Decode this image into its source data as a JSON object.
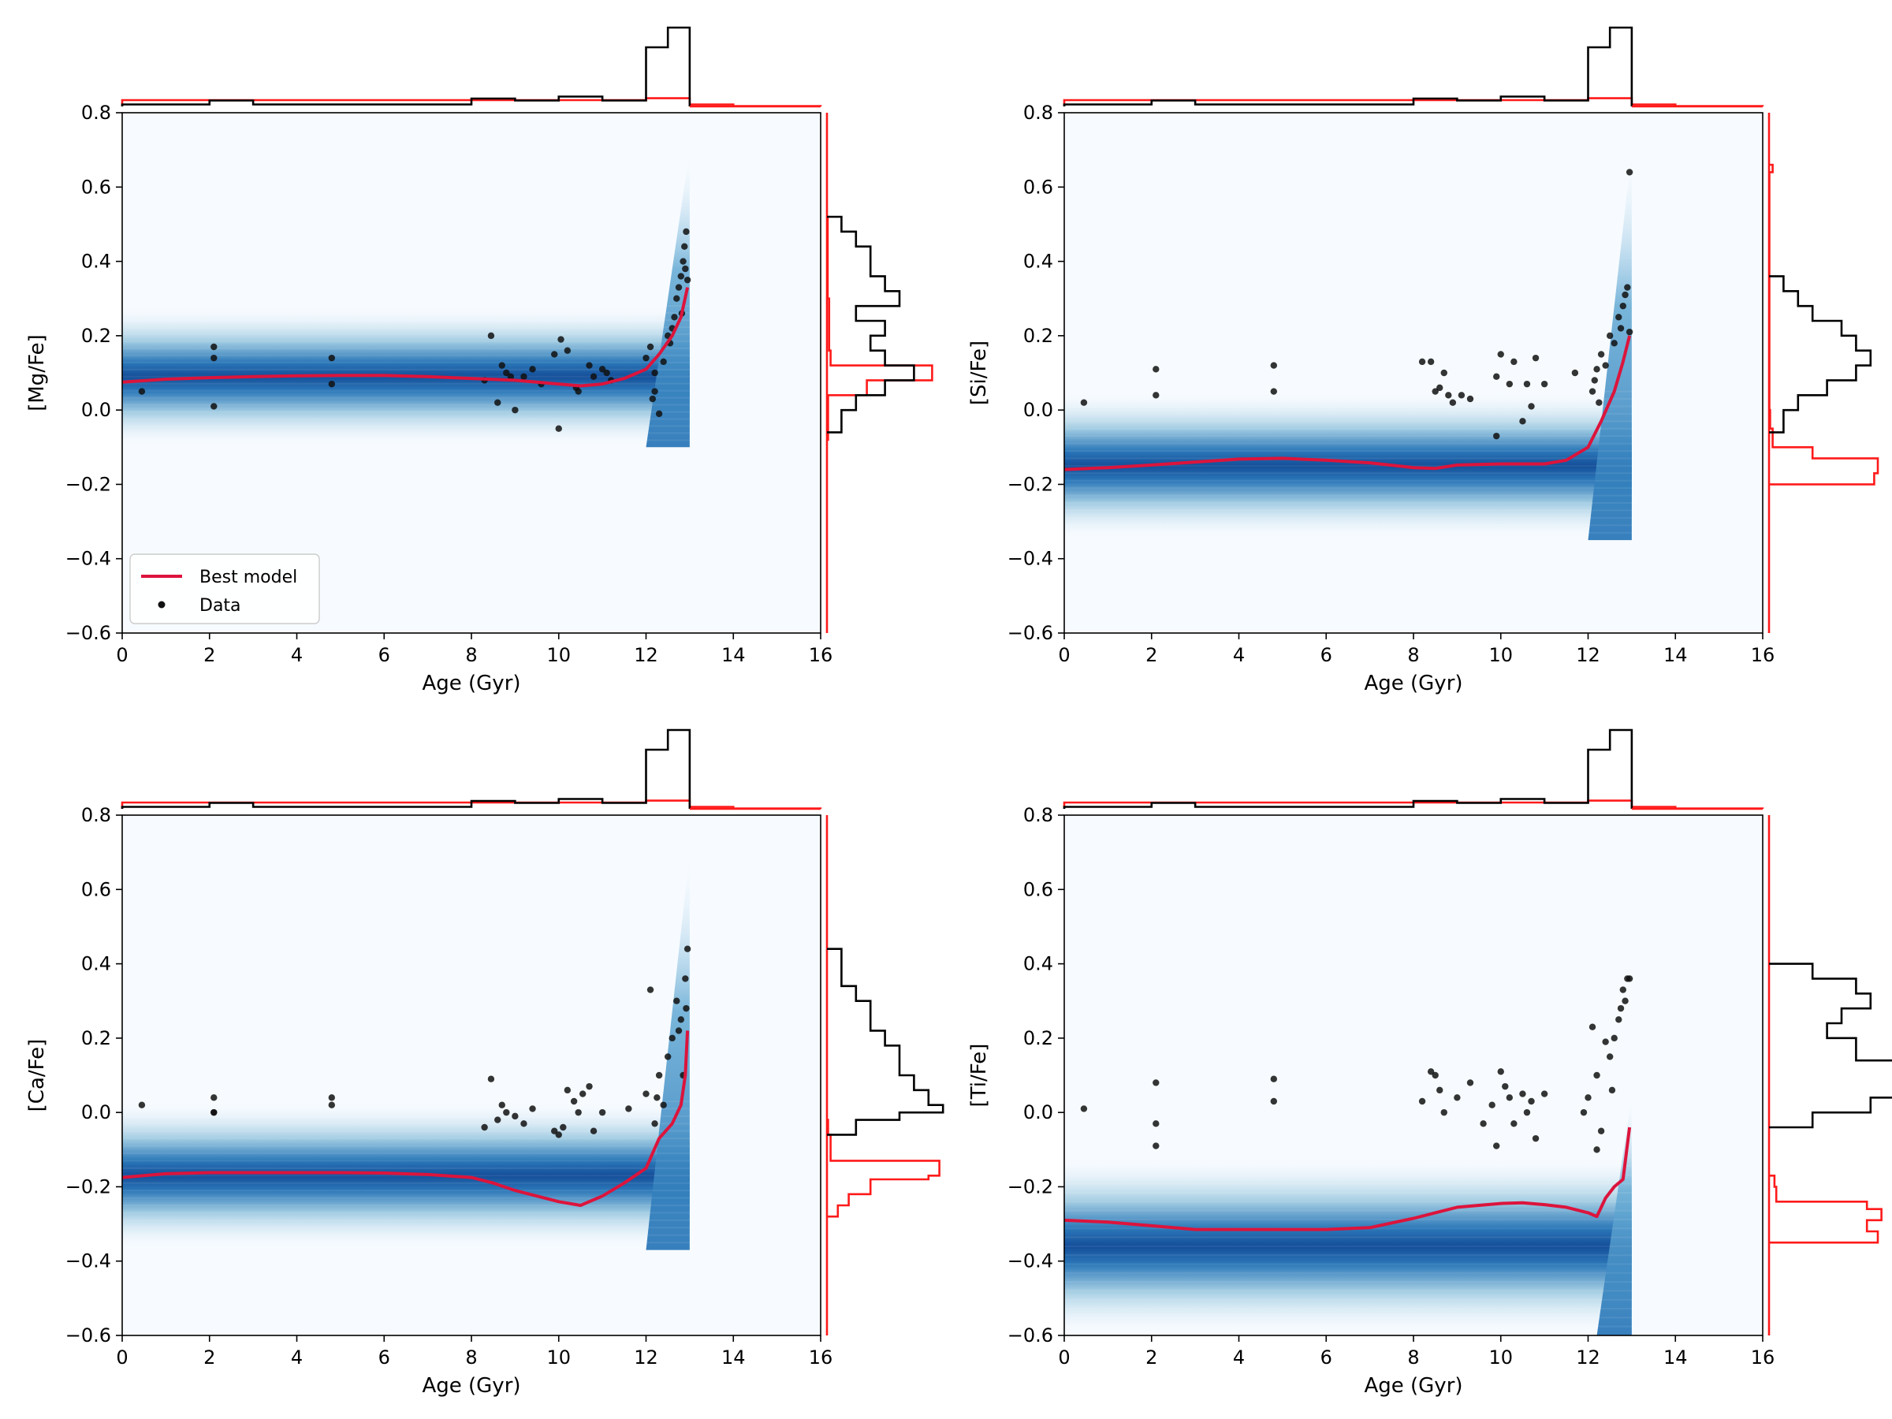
{
  "chart_data": [
    {
      "type": "scatter",
      "title": "",
      "xlabel": "Age (Gyr)",
      "ylabel": "[Mg/Fe]",
      "xlim": [
        0,
        16
      ],
      "ylim": [
        -0.6,
        0.8
      ],
      "xticks": [
        0,
        2,
        4,
        6,
        8,
        10,
        12,
        14,
        16
      ],
      "yticks": [
        -0.6,
        -0.4,
        -0.2,
        0.0,
        0.2,
        0.4,
        0.6,
        0.8
      ],
      "legend": {
        "placement": "lower-left",
        "entries": [
          "Best model",
          "Data"
        ]
      },
      "density_band": {
        "center": 0.09,
        "halfwidth": 0.19,
        "rise_start_age": 12.0,
        "rise_end_age": 13.0,
        "rise_top": 0.7
      },
      "model_line": {
        "name": "Best model",
        "color": "#dc143c",
        "x": [
          0,
          1,
          2,
          3,
          4,
          5,
          6,
          7,
          8,
          9,
          10,
          10.5,
          11,
          11.5,
          12,
          12.3,
          12.6,
          12.8,
          12.95
        ],
        "y": [
          0.075,
          0.083,
          0.087,
          0.09,
          0.092,
          0.093,
          0.093,
          0.09,
          0.085,
          0.08,
          0.07,
          0.065,
          0.07,
          0.085,
          0.11,
          0.15,
          0.2,
          0.25,
          0.33
        ]
      },
      "data_points": {
        "name": "Data",
        "color": "#111111",
        "x": [
          0.45,
          2.1,
          2.1,
          2.1,
          4.8,
          4.8,
          8.3,
          8.45,
          8.6,
          8.7,
          8.8,
          8.9,
          9.0,
          9.2,
          9.4,
          9.6,
          9.9,
          10.0,
          10.05,
          10.2,
          10.4,
          10.45,
          10.7,
          10.8,
          11.0,
          11.1,
          11.2,
          12.0,
          12.1,
          12.15,
          12.2,
          12.2,
          12.3,
          12.4,
          12.5,
          12.55,
          12.6,
          12.65,
          12.7,
          12.75,
          12.8,
          12.82,
          12.85,
          12.88,
          12.9,
          12.92,
          12.95
        ],
        "y": [
          0.05,
          0.17,
          0.14,
          0.01,
          0.14,
          0.07,
          0.08,
          0.2,
          0.02,
          0.12,
          0.1,
          0.09,
          0.0,
          0.09,
          0.11,
          0.07,
          0.15,
          -0.05,
          0.19,
          0.16,
          0.06,
          0.05,
          0.12,
          0.09,
          0.11,
          0.1,
          0.08,
          0.14,
          0.17,
          0.03,
          0.05,
          0.1,
          -0.01,
          0.13,
          0.2,
          0.18,
          0.22,
          0.25,
          0.3,
          0.33,
          0.36,
          0.26,
          0.4,
          0.44,
          0.38,
          0.48,
          0.35
        ]
      },
      "top_histogram": {
        "data": {
          "bins": [
            0,
            1,
            2,
            3,
            4,
            5,
            6,
            7,
            8,
            9,
            10,
            11,
            12,
            12.5,
            13
          ],
          "counts": [
            1,
            1,
            3,
            1,
            1,
            1,
            1,
            1,
            4,
            3,
            5,
            3,
            30,
            40
          ]
        },
        "model": {
          "bins": [
            0,
            2,
            4,
            6,
            8,
            10,
            12,
            13,
            14,
            16
          ],
          "counts": [
            1.0,
            1.0,
            1.0,
            1.0,
            1.0,
            1.0,
            1.3,
            0.3,
            0.05
          ]
        }
      },
      "right_histogram": {
        "data": {
          "edges": [
            -0.06,
            0.0,
            0.04,
            0.08,
            0.12,
            0.16,
            0.2,
            0.24,
            0.28,
            0.32,
            0.36,
            0.4,
            0.44,
            0.48,
            0.52
          ],
          "counts": [
            1,
            2,
            4,
            6,
            4,
            3,
            4,
            2,
            5,
            4,
            3,
            3,
            2,
            1
          ]
        },
        "model": {
          "edges": [
            -0.08,
            0.04,
            0.08,
            0.12,
            0.16,
            0.3,
            0.52
          ],
          "counts": [
            0.3,
            11.0,
            29.0,
            1.0,
            0.6,
            0.2
          ]
        }
      }
    },
    {
      "type": "scatter",
      "title": "",
      "xlabel": "Age (Gyr)",
      "ylabel": "[Si/Fe]",
      "xlim": [
        0,
        16
      ],
      "ylim": [
        -0.6,
        0.8
      ],
      "xticks": [
        0,
        2,
        4,
        6,
        8,
        10,
        12,
        14,
        16
      ],
      "yticks": [
        -0.6,
        -0.4,
        -0.2,
        0.0,
        0.2,
        0.4,
        0.6,
        0.8
      ],
      "density_band": {
        "center": -0.15,
        "halfwidth": 0.2,
        "rise_start_age": 12.0,
        "rise_end_age": 13.0,
        "rise_top": 0.7
      },
      "model_line": {
        "name": "Best model",
        "color": "#dc143c",
        "x": [
          0,
          1,
          2,
          3,
          4,
          5,
          6,
          7,
          8,
          8.5,
          9,
          10,
          11,
          11.5,
          12,
          12.3,
          12.6,
          12.8,
          12.95
        ],
        "y": [
          -0.16,
          -0.155,
          -0.148,
          -0.14,
          -0.132,
          -0.13,
          -0.135,
          -0.142,
          -0.155,
          -0.157,
          -0.148,
          -0.145,
          -0.145,
          -0.135,
          -0.1,
          -0.03,
          0.05,
          0.13,
          0.2
        ]
      },
      "data_points": {
        "name": "Data",
        "color": "#111111",
        "x": [
          0.45,
          2.1,
          2.1,
          4.8,
          4.8,
          8.2,
          8.4,
          8.5,
          8.6,
          8.7,
          8.8,
          8.9,
          9.1,
          9.3,
          9.9,
          9.9,
          10.0,
          10.2,
          10.3,
          10.5,
          10.6,
          10.7,
          10.8,
          11.0,
          11.7,
          12.1,
          12.15,
          12.2,
          12.25,
          12.3,
          12.4,
          12.5,
          12.6,
          12.7,
          12.75,
          12.8,
          12.85,
          12.9,
          12.95,
          12.95
        ],
        "y": [
          0.02,
          0.11,
          0.04,
          0.12,
          0.05,
          0.13,
          0.13,
          0.05,
          0.06,
          0.1,
          0.04,
          0.02,
          0.04,
          0.03,
          -0.07,
          0.09,
          0.15,
          0.07,
          0.13,
          -0.03,
          0.07,
          0.01,
          0.14,
          0.07,
          0.1,
          0.05,
          0.08,
          0.11,
          0.02,
          0.15,
          0.12,
          0.2,
          0.18,
          0.25,
          0.22,
          0.28,
          0.31,
          0.33,
          0.64,
          0.21
        ]
      },
      "top_histogram": {
        "data": {
          "bins": [
            0,
            1,
            2,
            3,
            4,
            5,
            6,
            7,
            8,
            9,
            10,
            11,
            12,
            12.5,
            13
          ],
          "counts": [
            1,
            1,
            3,
            1,
            1,
            1,
            1,
            1,
            4,
            3,
            5,
            3,
            30,
            40
          ]
        },
        "model": {
          "bins": [
            0,
            2,
            4,
            6,
            8,
            10,
            12,
            13,
            14,
            16
          ],
          "counts": [
            1.0,
            1.0,
            1.0,
            1.0,
            1.0,
            1.0,
            1.3,
            0.3,
            0.05
          ]
        }
      },
      "right_histogram": {
        "data": {
          "edges": [
            -0.06,
            0.0,
            0.04,
            0.08,
            0.12,
            0.16,
            0.2,
            0.24,
            0.28,
            0.32,
            0.36
          ],
          "counts": [
            1,
            2,
            4,
            6,
            7,
            6,
            5,
            3,
            2,
            1
          ]
        },
        "model": {
          "edges": [
            -0.2,
            -0.17,
            -0.13,
            -0.1,
            -0.05,
            0.0,
            0.64,
            0.66
          ],
          "counts": [
            29.0,
            30.0,
            12.0,
            1.0,
            0.3,
            0.1,
            1.0
          ]
        }
      }
    },
    {
      "type": "scatter",
      "title": "",
      "xlabel": "Age (Gyr)",
      "ylabel": "[Ca/Fe]",
      "xlim": [
        0,
        16
      ],
      "ylim": [
        -0.6,
        0.8
      ],
      "xticks": [
        0,
        2,
        4,
        6,
        8,
        10,
        12,
        14,
        16
      ],
      "yticks": [
        -0.6,
        -0.4,
        -0.2,
        0.0,
        0.2,
        0.4,
        0.6,
        0.8
      ],
      "density_band": {
        "center": -0.17,
        "halfwidth": 0.2,
        "rise_start_age": 12.0,
        "rise_end_age": 13.0,
        "rise_top": 0.7
      },
      "model_line": {
        "name": "Best model",
        "color": "#dc143c",
        "x": [
          0,
          1,
          2,
          3,
          4,
          5,
          6,
          7,
          8,
          8.5,
          9,
          9.5,
          10,
          10.5,
          11,
          11.5,
          12,
          12.3,
          12.6,
          12.8,
          12.9,
          12.95
        ],
        "y": [
          -0.175,
          -0.165,
          -0.162,
          -0.162,
          -0.162,
          -0.162,
          -0.163,
          -0.167,
          -0.175,
          -0.19,
          -0.21,
          -0.225,
          -0.24,
          -0.25,
          -0.225,
          -0.19,
          -0.15,
          -0.07,
          -0.03,
          0.02,
          0.1,
          0.22
        ]
      },
      "data_points": {
        "name": "Data",
        "color": "#111111",
        "x": [
          0.45,
          2.1,
          2.1,
          2.1,
          4.8,
          4.8,
          8.3,
          8.45,
          8.6,
          8.7,
          8.8,
          9.0,
          9.2,
          9.4,
          9.9,
          10.0,
          10.1,
          10.2,
          10.35,
          10.45,
          10.55,
          10.7,
          10.8,
          11.0,
          11.6,
          12.0,
          12.1,
          12.2,
          12.25,
          12.3,
          12.4,
          12.5,
          12.6,
          12.7,
          12.75,
          12.8,
          12.85,
          12.9,
          12.95,
          12.92
        ],
        "y": [
          0.02,
          0.04,
          0.0,
          0.0,
          0.04,
          0.02,
          -0.04,
          0.09,
          -0.02,
          0.02,
          0.0,
          -0.01,
          -0.03,
          0.01,
          -0.05,
          -0.06,
          -0.04,
          0.06,
          0.03,
          0.0,
          0.05,
          0.07,
          -0.05,
          0.0,
          0.01,
          0.05,
          0.33,
          -0.03,
          0.04,
          0.1,
          0.02,
          0.15,
          0.2,
          0.3,
          0.22,
          0.25,
          0.1,
          0.36,
          0.44,
          0.28
        ]
      },
      "top_histogram": {
        "data": {
          "bins": [
            0,
            1,
            2,
            3,
            4,
            5,
            6,
            7,
            8,
            9,
            10,
            11,
            12,
            12.5,
            13
          ],
          "counts": [
            1,
            1,
            3,
            1,
            1,
            1,
            1,
            1,
            4,
            3,
            5,
            3,
            30,
            40
          ]
        },
        "model": {
          "bins": [
            0,
            2,
            4,
            6,
            8,
            10,
            12,
            13,
            14,
            16
          ],
          "counts": [
            1.0,
            1.0,
            1.0,
            1.0,
            1.0,
            1.0,
            1.3,
            0.3,
            0.05
          ]
        }
      },
      "right_histogram": {
        "data": {
          "edges": [
            -0.06,
            -0.02,
            0.0,
            0.02,
            0.06,
            0.1,
            0.14,
            0.18,
            0.22,
            0.26,
            0.3,
            0.34,
            0.38,
            0.44
          ],
          "counts": [
            2,
            5,
            8,
            7,
            6,
            5,
            5,
            4,
            3,
            3,
            2,
            1,
            1
          ]
        },
        "model": {
          "edges": [
            -0.28,
            -0.25,
            -0.22,
            -0.18,
            -0.17,
            -0.13,
            -0.06,
            -0.02
          ],
          "counts": [
            3.0,
            6.0,
            12.0,
            28.0,
            31.0,
            1.0,
            0.3
          ]
        }
      }
    },
    {
      "type": "scatter",
      "title": "",
      "xlabel": "Age (Gyr)",
      "ylabel": "[Ti/Fe]",
      "xlim": [
        0,
        16
      ],
      "ylim": [
        -0.6,
        0.8
      ],
      "xticks": [
        0,
        2,
        4,
        6,
        8,
        10,
        12,
        14,
        16
      ],
      "yticks": [
        -0.6,
        -0.4,
        -0.2,
        0.0,
        0.2,
        0.4,
        0.6,
        0.8
      ],
      "density_band": {
        "center": -0.36,
        "halfwidth": 0.24,
        "rise_start_age": 12.2,
        "rise_end_age": 13.0,
        "rise_top": 0.05
      },
      "model_line": {
        "name": "Best model",
        "color": "#dc143c",
        "x": [
          0,
          1,
          2,
          3,
          4,
          5,
          6,
          7,
          8,
          8.5,
          9,
          9.5,
          10,
          10.5,
          11,
          11.5,
          12,
          12.2,
          12.4,
          12.6,
          12.8,
          12.95
        ],
        "y": [
          -0.29,
          -0.295,
          -0.305,
          -0.315,
          -0.315,
          -0.315,
          -0.315,
          -0.31,
          -0.285,
          -0.27,
          -0.255,
          -0.25,
          -0.245,
          -0.243,
          -0.248,
          -0.255,
          -0.27,
          -0.28,
          -0.23,
          -0.2,
          -0.18,
          -0.04
        ]
      },
      "data_points": {
        "name": "Data",
        "color": "#111111",
        "x": [
          0.45,
          2.1,
          2.1,
          2.1,
          4.8,
          4.8,
          8.2,
          8.4,
          8.5,
          8.6,
          8.7,
          9.0,
          9.3,
          9.6,
          9.8,
          9.9,
          10.0,
          10.1,
          10.2,
          10.3,
          10.5,
          10.6,
          10.7,
          10.8,
          11.0,
          11.9,
          12.0,
          12.1,
          12.2,
          12.2,
          12.3,
          12.4,
          12.5,
          12.55,
          12.6,
          12.7,
          12.75,
          12.8,
          12.85,
          12.9,
          12.95
        ],
        "y": [
          0.01,
          0.08,
          -0.03,
          -0.09,
          0.09,
          0.03,
          0.03,
          0.11,
          0.1,
          0.06,
          0.0,
          0.04,
          0.08,
          -0.03,
          0.02,
          -0.09,
          0.11,
          0.07,
          0.04,
          -0.03,
          0.05,
          0.0,
          0.03,
          -0.07,
          0.05,
          0.0,
          0.04,
          0.23,
          -0.1,
          0.1,
          -0.05,
          0.19,
          0.15,
          0.06,
          0.2,
          0.25,
          0.28,
          0.33,
          0.3,
          0.36,
          0.36
        ]
      },
      "top_histogram": {
        "data": {
          "bins": [
            0,
            1,
            2,
            3,
            4,
            5,
            6,
            7,
            8,
            9,
            10,
            11,
            12,
            12.5,
            13
          ],
          "counts": [
            1,
            1,
            3,
            1,
            1,
            1,
            1,
            1,
            4,
            3,
            5,
            3,
            30,
            40
          ]
        },
        "model": {
          "bins": [
            0,
            2,
            4,
            6,
            8,
            10,
            12,
            13,
            14,
            16
          ],
          "counts": [
            1.0,
            1.0,
            1.0,
            1.0,
            1.0,
            1.0,
            1.3,
            0.3,
            0.05
          ]
        }
      },
      "right_histogram": {
        "data": {
          "edges": [
            -0.04,
            0.0,
            0.04,
            0.08,
            0.14,
            0.2,
            0.24,
            0.28,
            0.32,
            0.36,
            0.4
          ],
          "counts": [
            3,
            7,
            9,
            12,
            6,
            4,
            5,
            7,
            6,
            3
          ]
        },
        "model": {
          "edges": [
            -0.35,
            -0.32,
            -0.29,
            -0.26,
            -0.24,
            -0.2,
            -0.17
          ],
          "counts": [
            30.0,
            27.0,
            31.0,
            27.0,
            2.0,
            1.5
          ]
        }
      }
    }
  ]
}
